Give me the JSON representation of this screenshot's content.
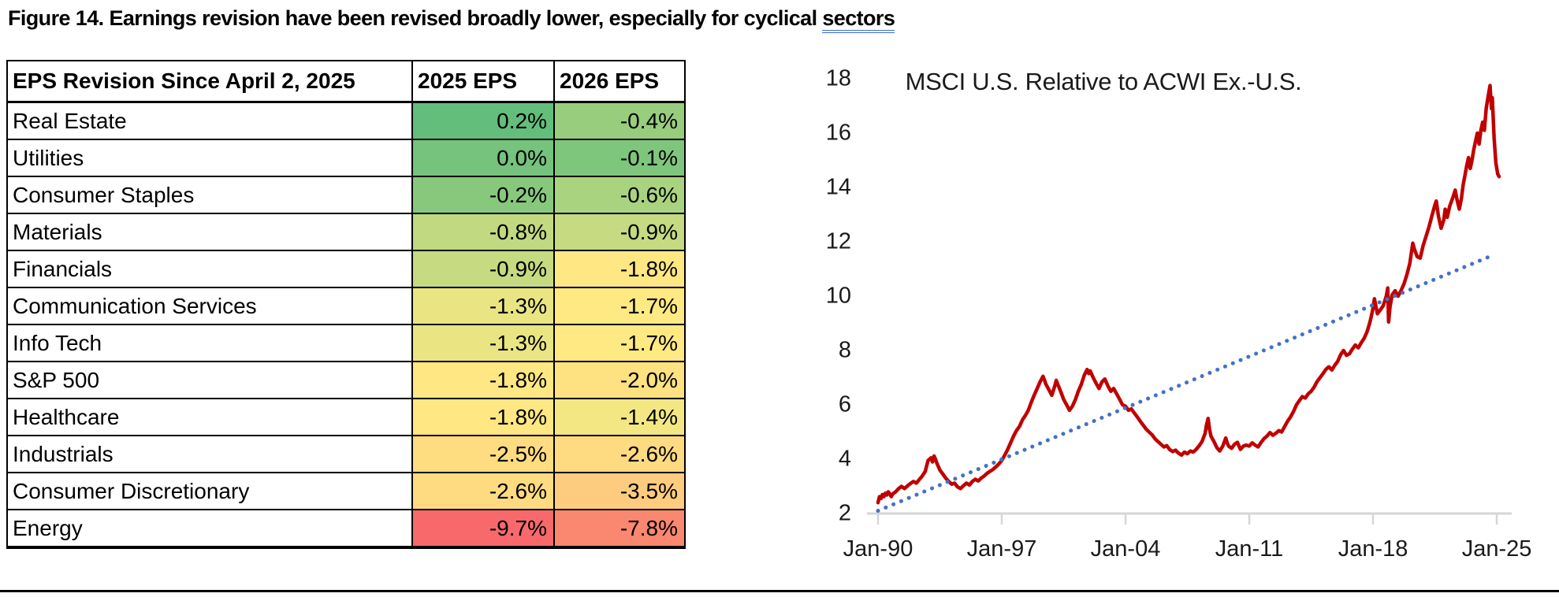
{
  "figure_title": {
    "prefix": "Figure 14. Earnings revision have been revised broadly lower, especially for cyclical ",
    "underlined_word": "sectors"
  },
  "table": {
    "headers": [
      "EPS Revision Since April 2, 2025",
      "2025 EPS",
      "2026 EPS"
    ],
    "rows": [
      {
        "sector": "Real Estate",
        "eps_2025": "0.2%",
        "eps_2026": "-0.4%",
        "color_2025": "#63BE7B",
        "color_2026": "#98CD7E"
      },
      {
        "sector": "Utilities",
        "eps_2025": "0.0%",
        "eps_2026": "-0.1%",
        "color_2025": "#75C37C",
        "color_2026": "#7EC67C"
      },
      {
        "sector": "Consumer Staples",
        "eps_2025": "-0.2%",
        "eps_2026": "-0.6%",
        "color_2025": "#87C87D",
        "color_2026": "#AAD37F"
      },
      {
        "sector": "Materials",
        "eps_2025": "-0.8%",
        "eps_2026": "-0.9%",
        "color_2025": "#C1D980",
        "color_2026": "#C5DA81"
      },
      {
        "sector": "Financials",
        "eps_2025": "-0.9%",
        "eps_2026": "-1.8%",
        "color_2025": "#C5DA81",
        "color_2026": "#FFE783"
      },
      {
        "sector": "Communication Services",
        "eps_2025": "-1.3%",
        "eps_2026": "-1.7%",
        "color_2025": "#E9E583",
        "color_2026": "#FFE983"
      },
      {
        "sector": "Info Tech",
        "eps_2025": "-1.3%",
        "eps_2026": "-1.7%",
        "color_2025": "#E9E583",
        "color_2026": "#FFE983"
      },
      {
        "sector": "S&P 500",
        "eps_2025": "-1.8%",
        "eps_2026": "-2.0%",
        "color_2025": "#FFE783",
        "color_2026": "#FEE181"
      },
      {
        "sector": "Healthcare",
        "eps_2025": "-1.8%",
        "eps_2026": "-1.4%",
        "color_2025": "#FFE783",
        "color_2026": "#F2E783"
      },
      {
        "sector": "Industrials",
        "eps_2025": "-2.5%",
        "eps_2026": "-2.6%",
        "color_2025": "#FEDC80",
        "color_2026": "#FEDA80"
      },
      {
        "sector": "Consumer Discretionary",
        "eps_2025": "-2.6%",
        "eps_2026": "-3.5%",
        "color_2025": "#FEDA80",
        "color_2026": "#FDCC7E"
      },
      {
        "sector": "Energy",
        "eps_2025": "-9.7%",
        "eps_2026": "-7.8%",
        "color_2025": "#F8696B",
        "color_2026": "#FA876F"
      }
    ]
  },
  "chart_data": {
    "type": "line",
    "title": "MSCI U.S. Relative to ACWI Ex.-U.S.",
    "x_tick_labels": [
      "Jan-90",
      "Jan-97",
      "Jan-04",
      "Jan-11",
      "Jan-18",
      "Jan-25"
    ],
    "x_tick_years": [
      1990,
      1997,
      2004,
      2011,
      2018,
      2025
    ],
    "y_ticks": [
      2,
      4,
      6,
      8,
      10,
      12,
      14,
      16,
      18
    ],
    "ylim": [
      2,
      18
    ],
    "xlim": [
      1990,
      2025.6
    ],
    "grid": false,
    "legend": "none",
    "axis_color": "#D6D6D6",
    "series": [
      {
        "name": "MSCI U.S. relative to ACWI ex-U.S. (ratio)",
        "color": "#C00000",
        "style": "solid",
        "points": [
          [
            1990.0,
            2.4
          ],
          [
            1990.08,
            2.62
          ],
          [
            1990.17,
            2.55
          ],
          [
            1990.25,
            2.7
          ],
          [
            1990.33,
            2.62
          ],
          [
            1990.42,
            2.75
          ],
          [
            1990.5,
            2.68
          ],
          [
            1990.58,
            2.8
          ],
          [
            1990.67,
            2.72
          ],
          [
            1990.75,
            2.62
          ],
          [
            1990.83,
            2.72
          ],
          [
            1991.0,
            2.8
          ],
          [
            1991.17,
            2.92
          ],
          [
            1991.33,
            3.0
          ],
          [
            1991.5,
            2.92
          ],
          [
            1991.67,
            3.02
          ],
          [
            1991.83,
            3.1
          ],
          [
            1992.0,
            3.18
          ],
          [
            1992.17,
            3.12
          ],
          [
            1992.33,
            3.25
          ],
          [
            1992.5,
            3.38
          ],
          [
            1992.67,
            3.55
          ],
          [
            1992.83,
            3.95
          ],
          [
            1993.0,
            4.05
          ],
          [
            1993.08,
            3.9
          ],
          [
            1993.17,
            4.12
          ],
          [
            1993.25,
            4.0
          ],
          [
            1993.33,
            3.85
          ],
          [
            1993.5,
            3.6
          ],
          [
            1993.67,
            3.45
          ],
          [
            1993.83,
            3.3
          ],
          [
            1994.0,
            3.18
          ],
          [
            1994.17,
            3.08
          ],
          [
            1994.33,
            3.12
          ],
          [
            1994.5,
            2.98
          ],
          [
            1994.67,
            2.92
          ],
          [
            1994.83,
            3.02
          ],
          [
            1995.0,
            3.12
          ],
          [
            1995.17,
            3.05
          ],
          [
            1995.33,
            3.18
          ],
          [
            1995.5,
            3.26
          ],
          [
            1995.67,
            3.2
          ],
          [
            1995.83,
            3.3
          ],
          [
            1996.0,
            3.38
          ],
          [
            1996.17,
            3.48
          ],
          [
            1996.33,
            3.55
          ],
          [
            1996.5,
            3.62
          ],
          [
            1996.67,
            3.72
          ],
          [
            1996.83,
            3.82
          ],
          [
            1997.0,
            3.95
          ],
          [
            1997.17,
            4.15
          ],
          [
            1997.33,
            4.35
          ],
          [
            1997.5,
            4.6
          ],
          [
            1997.67,
            4.85
          ],
          [
            1997.83,
            5.05
          ],
          [
            1998.0,
            5.2
          ],
          [
            1998.17,
            5.45
          ],
          [
            1998.33,
            5.6
          ],
          [
            1998.5,
            5.8
          ],
          [
            1998.67,
            6.1
          ],
          [
            1998.83,
            6.35
          ],
          [
            1999.0,
            6.6
          ],
          [
            1999.17,
            6.85
          ],
          [
            1999.33,
            7.05
          ],
          [
            1999.42,
            6.9
          ],
          [
            1999.5,
            6.75
          ],
          [
            1999.67,
            6.55
          ],
          [
            1999.83,
            6.35
          ],
          [
            2000.0,
            6.7
          ],
          [
            2000.08,
            6.9
          ],
          [
            2000.17,
            6.75
          ],
          [
            2000.33,
            6.5
          ],
          [
            2000.5,
            6.2
          ],
          [
            2000.67,
            6.0
          ],
          [
            2000.83,
            5.8
          ],
          [
            2001.0,
            5.95
          ],
          [
            2001.17,
            6.2
          ],
          [
            2001.33,
            6.5
          ],
          [
            2001.5,
            6.75
          ],
          [
            2001.67,
            7.1
          ],
          [
            2001.83,
            7.3
          ],
          [
            2001.92,
            7.15
          ],
          [
            2002.0,
            7.25
          ],
          [
            2002.17,
            7.0
          ],
          [
            2002.33,
            6.8
          ],
          [
            2002.5,
            6.6
          ],
          [
            2002.67,
            6.85
          ],
          [
            2002.83,
            6.95
          ],
          [
            2003.0,
            6.7
          ],
          [
            2003.17,
            6.5
          ],
          [
            2003.33,
            6.6
          ],
          [
            2003.5,
            6.4
          ],
          [
            2003.67,
            6.2
          ],
          [
            2003.83,
            6.0
          ],
          [
            2004.0,
            5.95
          ],
          [
            2004.17,
            5.8
          ],
          [
            2004.33,
            5.85
          ],
          [
            2004.5,
            5.7
          ],
          [
            2004.67,
            5.55
          ],
          [
            2004.83,
            5.4
          ],
          [
            2005.0,
            5.25
          ],
          [
            2005.17,
            5.1
          ],
          [
            2005.33,
            5.0
          ],
          [
            2005.5,
            4.9
          ],
          [
            2005.67,
            4.75
          ],
          [
            2005.83,
            4.65
          ],
          [
            2006.0,
            4.55
          ],
          [
            2006.17,
            4.45
          ],
          [
            2006.33,
            4.5
          ],
          [
            2006.5,
            4.35
          ],
          [
            2006.67,
            4.28
          ],
          [
            2006.83,
            4.33
          ],
          [
            2007.0,
            4.22
          ],
          [
            2007.17,
            4.15
          ],
          [
            2007.33,
            4.26
          ],
          [
            2007.5,
            4.2
          ],
          [
            2007.67,
            4.3
          ],
          [
            2007.83,
            4.26
          ],
          [
            2008.0,
            4.36
          ],
          [
            2008.17,
            4.5
          ],
          [
            2008.33,
            4.65
          ],
          [
            2008.5,
            4.95
          ],
          [
            2008.58,
            5.25
          ],
          [
            2008.67,
            5.5
          ],
          [
            2008.75,
            5.1
          ],
          [
            2008.83,
            4.85
          ],
          [
            2009.0,
            4.65
          ],
          [
            2009.17,
            4.42
          ],
          [
            2009.33,
            4.3
          ],
          [
            2009.5,
            4.48
          ],
          [
            2009.67,
            4.78
          ],
          [
            2009.75,
            4.6
          ],
          [
            2009.83,
            4.48
          ],
          [
            2010.0,
            4.4
          ],
          [
            2010.17,
            4.55
          ],
          [
            2010.33,
            4.62
          ],
          [
            2010.5,
            4.36
          ],
          [
            2010.67,
            4.48
          ],
          [
            2010.83,
            4.52
          ],
          [
            2011.0,
            4.48
          ],
          [
            2011.17,
            4.6
          ],
          [
            2011.33,
            4.52
          ],
          [
            2011.5,
            4.45
          ],
          [
            2011.67,
            4.62
          ],
          [
            2011.83,
            4.75
          ],
          [
            2012.0,
            4.85
          ],
          [
            2012.17,
            4.98
          ],
          [
            2012.33,
            4.88
          ],
          [
            2012.5,
            4.95
          ],
          [
            2012.67,
            5.05
          ],
          [
            2012.83,
            5.0
          ],
          [
            2013.0,
            5.2
          ],
          [
            2013.17,
            5.4
          ],
          [
            2013.33,
            5.55
          ],
          [
            2013.5,
            5.75
          ],
          [
            2013.67,
            6.0
          ],
          [
            2013.83,
            6.15
          ],
          [
            2014.0,
            6.3
          ],
          [
            2014.17,
            6.25
          ],
          [
            2014.33,
            6.4
          ],
          [
            2014.5,
            6.5
          ],
          [
            2014.67,
            6.65
          ],
          [
            2014.83,
            6.85
          ],
          [
            2015.0,
            7.0
          ],
          [
            2015.17,
            7.15
          ],
          [
            2015.33,
            7.3
          ],
          [
            2015.5,
            7.4
          ],
          [
            2015.67,
            7.28
          ],
          [
            2015.83,
            7.45
          ],
          [
            2016.0,
            7.6
          ],
          [
            2016.17,
            7.85
          ],
          [
            2016.33,
            8.0
          ],
          [
            2016.5,
            7.82
          ],
          [
            2016.67,
            7.88
          ],
          [
            2016.83,
            8.05
          ],
          [
            2017.0,
            8.2
          ],
          [
            2017.17,
            8.1
          ],
          [
            2017.33,
            8.28
          ],
          [
            2017.5,
            8.45
          ],
          [
            2017.67,
            8.7
          ],
          [
            2017.83,
            9.05
          ],
          [
            2017.92,
            9.3
          ],
          [
            2018.0,
            9.55
          ],
          [
            2018.08,
            9.9
          ],
          [
            2018.17,
            9.6
          ],
          [
            2018.25,
            9.35
          ],
          [
            2018.42,
            9.5
          ],
          [
            2018.58,
            9.65
          ],
          [
            2018.75,
            10.0
          ],
          [
            2018.83,
            10.3
          ],
          [
            2018.88,
            9.05
          ],
          [
            2018.96,
            9.6
          ],
          [
            2019.08,
            10.05
          ],
          [
            2019.25,
            10.2
          ],
          [
            2019.42,
            10.0
          ],
          [
            2019.58,
            10.2
          ],
          [
            2019.75,
            10.45
          ],
          [
            2019.92,
            10.8
          ],
          [
            2020.08,
            11.2
          ],
          [
            2020.25,
            11.95
          ],
          [
            2020.33,
            11.75
          ],
          [
            2020.5,
            11.45
          ],
          [
            2020.67,
            11.4
          ],
          [
            2020.83,
            11.85
          ],
          [
            2021.0,
            12.2
          ],
          [
            2021.17,
            12.55
          ],
          [
            2021.33,
            12.95
          ],
          [
            2021.5,
            13.35
          ],
          [
            2021.58,
            13.5
          ],
          [
            2021.7,
            12.95
          ],
          [
            2021.85,
            12.5
          ],
          [
            2022.0,
            12.8
          ],
          [
            2022.08,
            13.2
          ],
          [
            2022.2,
            12.9
          ],
          [
            2022.33,
            13.3
          ],
          [
            2022.5,
            13.6
          ],
          [
            2022.65,
            13.9
          ],
          [
            2022.75,
            13.55
          ],
          [
            2022.88,
            13.2
          ],
          [
            2023.0,
            13.6
          ],
          [
            2023.1,
            14.1
          ],
          [
            2023.2,
            14.45
          ],
          [
            2023.3,
            14.8
          ],
          [
            2023.4,
            15.1
          ],
          [
            2023.5,
            14.7
          ],
          [
            2023.6,
            15.0
          ],
          [
            2023.7,
            15.4
          ],
          [
            2023.8,
            15.7
          ],
          [
            2023.9,
            16.0
          ],
          [
            2024.0,
            15.6
          ],
          [
            2024.1,
            16.1
          ],
          [
            2024.2,
            16.4
          ],
          [
            2024.3,
            16.1
          ],
          [
            2024.4,
            16.9
          ],
          [
            2024.5,
            17.3
          ],
          [
            2024.62,
            17.75
          ],
          [
            2024.7,
            16.9
          ],
          [
            2024.75,
            17.3
          ],
          [
            2024.85,
            15.8
          ],
          [
            2024.95,
            14.9
          ],
          [
            2025.05,
            14.5
          ],
          [
            2025.13,
            14.4
          ]
        ]
      },
      {
        "name": "Linear trend",
        "color": "#4472C4",
        "style": "dotted",
        "points": [
          [
            1990.0,
            2.1
          ],
          [
            2024.75,
            11.5
          ]
        ]
      }
    ]
  }
}
